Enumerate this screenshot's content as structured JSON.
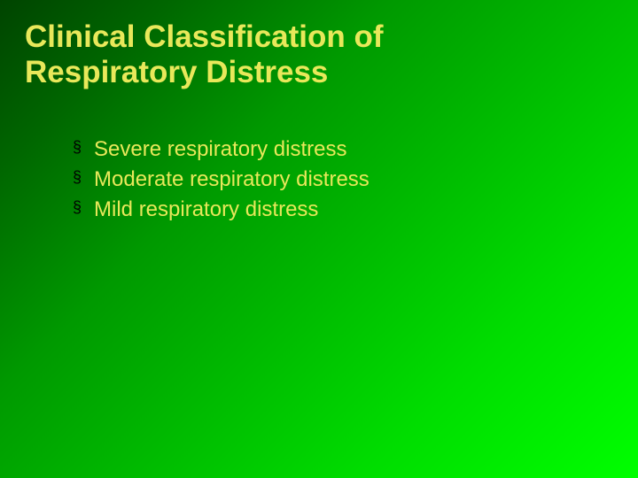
{
  "title": {
    "line1": "Clinical Classification of",
    "line2": "Respiratory Distress",
    "color": "#e8e85a",
    "fontsize": 35
  },
  "bullets": {
    "marker": "§",
    "marker_color": "#000000",
    "text_color": "#e8e85a",
    "fontsize": 24,
    "items": [
      "Severe respiratory distress",
      "Moderate respiratory distress",
      "Mild respiratory distress"
    ]
  },
  "background": {
    "gradient_start": "#004400",
    "gradient_end": "#00ff00"
  }
}
